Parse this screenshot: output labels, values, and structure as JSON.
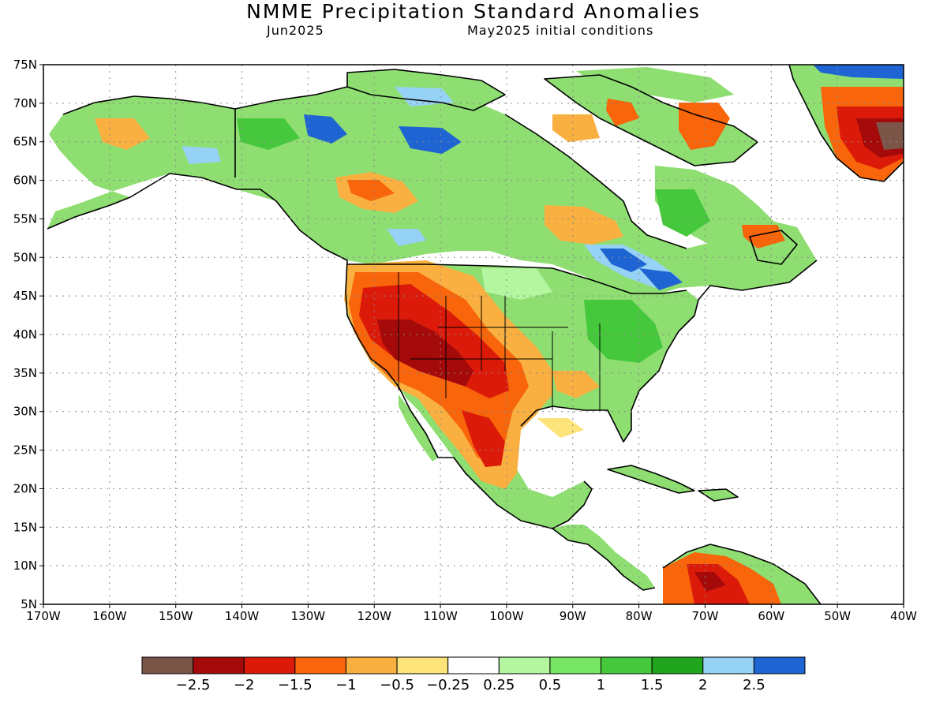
{
  "title": "NMME Precipitation Standard Anomalies",
  "subtitle_left": "Jun2025",
  "subtitle_right": "May2025 initial conditions",
  "lat_labels": [
    "75N",
    "70N",
    "65N",
    "60N",
    "55N",
    "50N",
    "45N",
    "40N",
    "35N",
    "30N",
    "25N",
    "20N",
    "15N",
    "10N",
    "5N"
  ],
  "lon_labels": [
    "170W",
    "160W",
    "150W",
    "140W",
    "130W",
    "120W",
    "110W",
    "100W",
    "90W",
    "80W",
    "70W",
    "60W",
    "50W",
    "40W"
  ],
  "colorbar": {
    "colors": [
      "#7b5548",
      "#a50a0a",
      "#dc1a0a",
      "#f8650a",
      "#f9b040",
      "#fde47a",
      "#ffffff",
      "#b4f5a0",
      "#78e665",
      "#46c83c",
      "#21a51e",
      "#96d2f5",
      "#1e64d2"
    ],
    "labels": [
      "−2.5",
      "−2",
      "−1.5",
      "−1",
      "−0.5",
      "−0.25",
      "0.25",
      "0.5",
      "1",
      "1.5",
      "2",
      "2.5"
    ]
  },
  "colors": {
    "land": "#8ede72",
    "ocean": "#ffffff",
    "coast": "#000000",
    "grid": "#888888"
  }
}
